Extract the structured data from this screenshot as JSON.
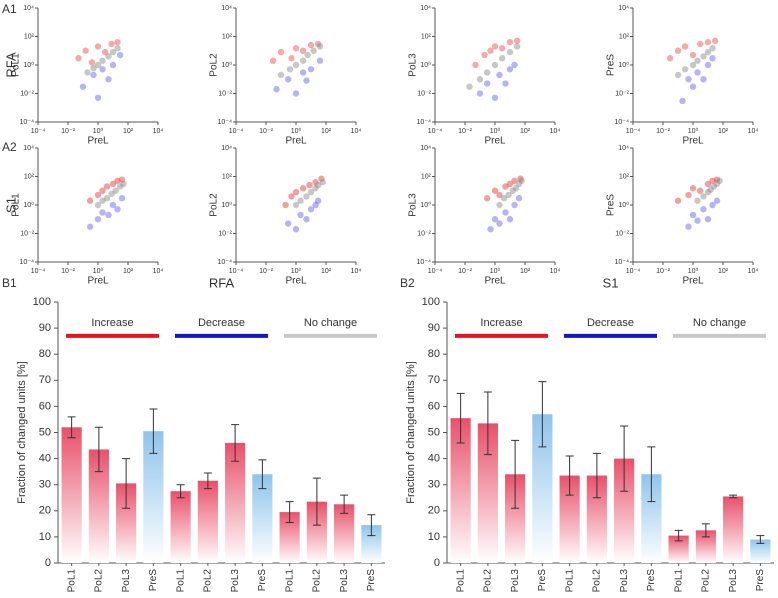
{
  "panel_labels": [
    "A1",
    "A2",
    "B1",
    "B2"
  ],
  "row_labels": [
    "RFA",
    "S1"
  ],
  "chart_data": [
    {
      "type": "scatter",
      "xlabel": "PreL",
      "ylabel": "PoL1",
      "xscale": "log",
      "yscale": "log",
      "xlim": [
        0.0001,
        10000
      ],
      "ylim": [
        0.0001,
        10000
      ],
      "xticks": [
        {
          "value": 0.0001,
          "label": "10⁻⁴"
        },
        {
          "value": 0.01,
          "label": "10⁻²"
        },
        {
          "value": 1,
          "label": "10⁰"
        },
        {
          "value": 100,
          "label": "10²"
        },
        {
          "value": 10000,
          "label": "10⁴"
        }
      ],
      "yticks": [
        {
          "value": 0.0001,
          "label": "10⁻⁴"
        },
        {
          "value": 0.01,
          "label": "10⁻²"
        },
        {
          "value": 1,
          "label": "10⁰"
        },
        {
          "value": 100,
          "label": "10²"
        },
        {
          "value": 10000,
          "label": "10⁴"
        }
      ],
      "series": [
        {
          "color": "rgba(230,40,40,0.4)",
          "x": [
            0.05,
            0.15,
            0.4,
            1,
            3,
            8,
            20
          ],
          "values": [
            3,
            10,
            1.5,
            20,
            8,
            30,
            40
          ]
        },
        {
          "color": "rgba(40,40,230,0.35)",
          "x": [
            0.1,
            0.5,
            1,
            2,
            5,
            10,
            30
          ],
          "values": [
            0.03,
            0.2,
            0.005,
            0.5,
            0.1,
            1,
            5
          ]
        },
        {
          "color": "rgba(130,130,130,0.45)",
          "x": [
            0.2,
            0.5,
            1,
            2,
            5,
            10,
            20
          ],
          "values": [
            0.3,
            0.6,
            1,
            2,
            4,
            8,
            15
          ]
        }
      ]
    },
    {
      "type": "scatter",
      "xlabel": "PreL",
      "ylabel": "PoL2",
      "xscale": "log",
      "yscale": "log",
      "xlim": [
        0.0001,
        10000
      ],
      "ylim": [
        0.0001,
        10000
      ],
      "xticks": [
        {
          "value": 0.0001,
          "label": "10⁻⁴"
        },
        {
          "value": 0.01,
          "label": "10⁻²"
        },
        {
          "value": 1,
          "label": "10⁰"
        },
        {
          "value": 100,
          "label": "10²"
        },
        {
          "value": 10000,
          "label": "10⁴"
        }
      ],
      "yticks": [
        {
          "value": 0.0001,
          "label": "10⁻⁴"
        },
        {
          "value": 0.01,
          "label": "10⁻²"
        },
        {
          "value": 1,
          "label": "10⁰"
        },
        {
          "value": 100,
          "label": "10²"
        },
        {
          "value": 10000,
          "label": "10⁴"
        }
      ],
      "series": [
        {
          "color": "rgba(230,40,40,0.4)",
          "x": [
            0.03,
            0.1,
            0.5,
            1,
            3,
            10,
            30
          ],
          "values": [
            2,
            8,
            3,
            15,
            10,
            25,
            30
          ]
        },
        {
          "color": "rgba(40,40,230,0.35)",
          "x": [
            0.05,
            0.3,
            1,
            3,
            5,
            10,
            40
          ],
          "values": [
            0.02,
            0.1,
            0.01,
            0.3,
            0.08,
            0.5,
            2
          ]
        },
        {
          "color": "rgba(130,130,130,0.45)",
          "x": [
            0.1,
            0.4,
            1,
            3,
            6,
            15,
            40
          ],
          "values": [
            0.2,
            0.5,
            1,
            2,
            5,
            10,
            20
          ]
        }
      ]
    },
    {
      "type": "scatter",
      "xlabel": "PreL",
      "ylabel": "PoL3",
      "xscale": "log",
      "yscale": "log",
      "xlim": [
        0.0001,
        10000
      ],
      "ylim": [
        0.0001,
        10000
      ],
      "xticks": [
        {
          "value": 0.0001,
          "label": "10⁻⁴"
        },
        {
          "value": 0.01,
          "label": "10⁻²"
        },
        {
          "value": 1,
          "label": "10⁰"
        },
        {
          "value": 100,
          "label": "10²"
        },
        {
          "value": 10000,
          "label": "10⁴"
        }
      ],
      "yticks": [
        {
          "value": 0.0001,
          "label": "10⁻⁴"
        },
        {
          "value": 0.01,
          "label": "10⁻²"
        },
        {
          "value": 1,
          "label": "10⁰"
        },
        {
          "value": 100,
          "label": "10²"
        },
        {
          "value": 10000,
          "label": "10⁴"
        }
      ],
      "series": [
        {
          "color": "rgba(230,40,40,0.4)",
          "x": [
            0.05,
            0.2,
            0.5,
            1,
            3,
            10,
            30
          ],
          "values": [
            1,
            5,
            10,
            20,
            15,
            40,
            50
          ]
        },
        {
          "color": "rgba(40,40,230,0.35)",
          "x": [
            0.1,
            0.3,
            1,
            2,
            5,
            10,
            20
          ],
          "values": [
            0.01,
            0.05,
            0.005,
            0.2,
            0.05,
            0.5,
            1
          ]
        },
        {
          "color": "rgba(130,130,130,0.45)",
          "x": [
            0.02,
            0.1,
            0.3,
            1,
            3,
            10,
            30
          ],
          "values": [
            0.03,
            0.1,
            0.3,
            1,
            3,
            8,
            20
          ]
        }
      ]
    },
    {
      "type": "scatter",
      "xlabel": "PreL",
      "ylabel": "PreS",
      "xscale": "log",
      "yscale": "log",
      "xlim": [
        0.0001,
        10000
      ],
      "ylim": [
        0.0001,
        10000
      ],
      "xticks": [
        {
          "value": 0.0001,
          "label": "10⁻⁴"
        },
        {
          "value": 0.01,
          "label": "10⁻²"
        },
        {
          "value": 1,
          "label": "10⁰"
        },
        {
          "value": 100,
          "label": "10²"
        },
        {
          "value": 10000,
          "label": "10⁴"
        }
      ],
      "yticks": [
        {
          "value": 0.0001,
          "label": "10⁻⁴"
        },
        {
          "value": 0.01,
          "label": "10⁻²"
        },
        {
          "value": 1,
          "label": "10⁰"
        },
        {
          "value": 100,
          "label": "10²"
        },
        {
          "value": 10000,
          "label": "10⁴"
        }
      ],
      "series": [
        {
          "color": "rgba(230,40,40,0.4)",
          "x": [
            0.03,
            0.1,
            0.3,
            1,
            3,
            10,
            30
          ],
          "values": [
            3,
            10,
            20,
            5,
            30,
            40,
            50
          ]
        },
        {
          "color": "rgba(40,40,230,0.35)",
          "x": [
            0.2,
            0.5,
            1,
            2,
            5,
            10,
            20
          ],
          "values": [
            0.003,
            0.1,
            0.03,
            0.3,
            0.1,
            1,
            3
          ]
        },
        {
          "color": "rgba(130,130,130,0.45)",
          "x": [
            0.1,
            0.3,
            1,
            2,
            5,
            10,
            20
          ],
          "values": [
            0.2,
            0.5,
            1,
            2,
            4,
            8,
            15
          ]
        }
      ]
    },
    {
      "type": "scatter",
      "xlabel": "PreL",
      "ylabel": "PoL1",
      "xscale": "log",
      "yscale": "log",
      "xlim": [
        0.0001,
        10000
      ],
      "ylim": [
        0.0001,
        10000
      ],
      "xticks": [
        {
          "value": 0.0001,
          "label": "10⁻⁴"
        },
        {
          "value": 0.01,
          "label": "10⁻²"
        },
        {
          "value": 1,
          "label": "10⁰"
        },
        {
          "value": 100,
          "label": "10²"
        },
        {
          "value": 10000,
          "label": "10⁴"
        }
      ],
      "yticks": [
        {
          "value": 0.0001,
          "label": "10⁻⁴"
        },
        {
          "value": 0.01,
          "label": "10⁻²"
        },
        {
          "value": 1,
          "label": "10⁰"
        },
        {
          "value": 100,
          "label": "10²"
        },
        {
          "value": 10000,
          "label": "10⁴"
        }
      ],
      "series": [
        {
          "color": "rgba(230,40,40,0.45)",
          "x": [
            0.3,
            1,
            2,
            4,
            10,
            20,
            40
          ],
          "values": [
            2,
            5,
            10,
            20,
            30,
            50,
            60
          ]
        },
        {
          "color": "rgba(40,40,230,0.35)",
          "x": [
            0.3,
            1,
            2,
            5,
            10,
            20,
            40
          ],
          "values": [
            0.03,
            0.1,
            0.3,
            0.2,
            1,
            0.5,
            3
          ]
        },
        {
          "color": "rgba(130,130,130,0.45)",
          "x": [
            1,
            2,
            4,
            8,
            15,
            30,
            50
          ],
          "values": [
            1,
            2,
            3,
            6,
            10,
            20,
            30
          ]
        }
      ]
    },
    {
      "type": "scatter",
      "xlabel": "PreL",
      "ylabel": "PoL2",
      "xscale": "log",
      "yscale": "log",
      "xlim": [
        0.0001,
        10000
      ],
      "ylim": [
        0.0001,
        10000
      ],
      "xticks": [
        {
          "value": 0.0001,
          "label": "10⁻⁴"
        },
        {
          "value": 0.01,
          "label": "10⁻²"
        },
        {
          "value": 1,
          "label": "10⁰"
        },
        {
          "value": 100,
          "label": "10²"
        },
        {
          "value": 10000,
          "label": "10⁴"
        }
      ],
      "yticks": [
        {
          "value": 0.0001,
          "label": "10⁻⁴"
        },
        {
          "value": 0.01,
          "label": "10⁻²"
        },
        {
          "value": 1,
          "label": "10⁰"
        },
        {
          "value": 100,
          "label": "10²"
        },
        {
          "value": 10000,
          "label": "10⁴"
        }
      ],
      "series": [
        {
          "color": "rgba(230,40,40,0.45)",
          "x": [
            0.2,
            0.5,
            1,
            3,
            8,
            20,
            50
          ],
          "values": [
            1,
            4,
            8,
            15,
            25,
            40,
            70
          ]
        },
        {
          "color": "rgba(40,40,230,0.35)",
          "x": [
            0.3,
            1,
            2,
            5,
            10,
            20,
            30
          ],
          "values": [
            0.05,
            0.02,
            0.2,
            0.1,
            0.5,
            1,
            2
          ]
        },
        {
          "color": "rgba(130,130,130,0.45)",
          "x": [
            1,
            2,
            5,
            10,
            20,
            30,
            60
          ],
          "values": [
            1,
            2,
            4,
            8,
            15,
            25,
            40
          ]
        }
      ]
    },
    {
      "type": "scatter",
      "xlabel": "PreL",
      "ylabel": "PoL3",
      "xscale": "log",
      "yscale": "log",
      "xlim": [
        0.0001,
        10000
      ],
      "ylim": [
        0.0001,
        10000
      ],
      "xticks": [
        {
          "value": 0.0001,
          "label": "10⁻⁴"
        },
        {
          "value": 0.01,
          "label": "10⁻²"
        },
        {
          "value": 1,
          "label": "10⁰"
        },
        {
          "value": 100,
          "label": "10²"
        },
        {
          "value": 10000,
          "label": "10⁴"
        }
      ],
      "yticks": [
        {
          "value": 0.0001,
          "label": "10⁻⁴"
        },
        {
          "value": 0.01,
          "label": "10⁻²"
        },
        {
          "value": 1,
          "label": "10⁰"
        },
        {
          "value": 100,
          "label": "10²"
        },
        {
          "value": 10000,
          "label": "10⁴"
        }
      ],
      "series": [
        {
          "color": "rgba(230,40,40,0.45)",
          "x": [
            0.3,
            1,
            2,
            5,
            10,
            20,
            50
          ],
          "values": [
            3,
            10,
            5,
            20,
            30,
            50,
            70
          ]
        },
        {
          "color": "rgba(40,40,230,0.35)",
          "x": [
            0.5,
            1,
            2,
            5,
            10,
            20,
            40
          ],
          "values": [
            0.02,
            0.1,
            0.05,
            0.3,
            0.1,
            1,
            3
          ]
        },
        {
          "color": "rgba(130,130,130,0.45)",
          "x": [
            2,
            4,
            8,
            15,
            25,
            40,
            60
          ],
          "values": [
            1,
            3,
            5,
            10,
            15,
            30,
            50
          ]
        }
      ]
    },
    {
      "type": "scatter",
      "xlabel": "PreL",
      "ylabel": "PreS",
      "xscale": "log",
      "yscale": "log",
      "xlim": [
        0.0001,
        10000
      ],
      "ylim": [
        0.0001,
        10000
      ],
      "xticks": [
        {
          "value": 0.0001,
          "label": "10⁻⁴"
        },
        {
          "value": 0.01,
          "label": "10⁻²"
        },
        {
          "value": 1,
          "label": "10⁰"
        },
        {
          "value": 100,
          "label": "10²"
        },
        {
          "value": 10000,
          "label": "10⁴"
        }
      ],
      "yticks": [
        {
          "value": 0.0001,
          "label": "10⁻⁴"
        },
        {
          "value": 0.01,
          "label": "10⁻²"
        },
        {
          "value": 1,
          "label": "10⁰"
        },
        {
          "value": 100,
          "label": "10²"
        },
        {
          "value": 10000,
          "label": "10⁴"
        }
      ],
      "series": [
        {
          "color": "rgba(230,40,40,0.45)",
          "x": [
            0.1,
            0.5,
            1,
            3,
            10,
            20,
            40
          ],
          "values": [
            2,
            5,
            15,
            10,
            30,
            50,
            60
          ]
        },
        {
          "color": "rgba(40,40,230,0.35)",
          "x": [
            0.5,
            1,
            2,
            5,
            10,
            20,
            40
          ],
          "values": [
            0.03,
            0.2,
            0.08,
            0.5,
            0.1,
            1,
            2
          ]
        },
        {
          "color": "rgba(130,130,130,0.45)",
          "x": [
            2,
            5,
            10,
            15,
            25,
            40,
            60
          ],
          "values": [
            2,
            4,
            8,
            12,
            20,
            30,
            50
          ]
        }
      ]
    },
    {
      "type": "bar",
      "title": "RFA",
      "ylabel": "Fraction of changed units [%]",
      "ylim": [
        0,
        100
      ],
      "yticks": [
        0,
        10,
        20,
        30,
        40,
        50,
        60,
        70,
        80,
        90,
        100
      ],
      "categories": [
        "PoL1",
        "PoL2",
        "PoL3",
        "PreS",
        "PoL1",
        "PoL2",
        "PoL3",
        "PreS",
        "PoL1",
        "PoL2",
        "PoL3",
        "PreS"
      ],
      "values": [
        52,
        43.5,
        30.5,
        50.5,
        27.5,
        31.5,
        46,
        34,
        19.5,
        23.5,
        22.5,
        14.5
      ],
      "errors": [
        4,
        8.5,
        9.5,
        8.5,
        2.5,
        3,
        7,
        5.5,
        4,
        9,
        3.5,
        4
      ],
      "colors": [
        "#e8506a",
        "#e8506a",
        "#e8506a",
        "#8ec4ec",
        "#e8506a",
        "#e8506a",
        "#e8506a",
        "#8ec4ec",
        "#e8506a",
        "#e8506a",
        "#e8506a",
        "#8ec4ec"
      ],
      "groups": [
        {
          "label": "Increase",
          "color": "#e8141c"
        },
        {
          "label": "Decrease",
          "color": "#1414c8"
        },
        {
          "label": "No change",
          "color": "#c8c8c8"
        }
      ]
    },
    {
      "type": "bar",
      "title": "S1",
      "ylabel": "Fraction of changed units [%]",
      "ylim": [
        0,
        100
      ],
      "yticks": [
        0,
        10,
        20,
        30,
        40,
        50,
        60,
        70,
        80,
        90,
        100
      ],
      "categories": [
        "PoL1",
        "PoL2",
        "PoL3",
        "PreS",
        "PoL1",
        "PoL2",
        "PoL3",
        "PreS",
        "PoL1",
        "PoL2",
        "PoL3",
        "PreS"
      ],
      "values": [
        55.5,
        53.5,
        34,
        57,
        33.5,
        33.5,
        40,
        34,
        10.5,
        12.5,
        25.5,
        9
      ],
      "errors": [
        9.5,
        12,
        13,
        12.5,
        7.5,
        8.5,
        12.5,
        10.5,
        2,
        2.5,
        0.5,
        1.5
      ],
      "colors": [
        "#e8506a",
        "#e8506a",
        "#e8506a",
        "#8ec4ec",
        "#e8506a",
        "#e8506a",
        "#e8506a",
        "#8ec4ec",
        "#e8506a",
        "#e8506a",
        "#e8506a",
        "#8ec4ec"
      ],
      "groups": [
        {
          "label": "Increase",
          "color": "#e8141c"
        },
        {
          "label": "Decrease",
          "color": "#1414c8"
        },
        {
          "label": "No change",
          "color": "#c8c8c8"
        }
      ]
    }
  ]
}
